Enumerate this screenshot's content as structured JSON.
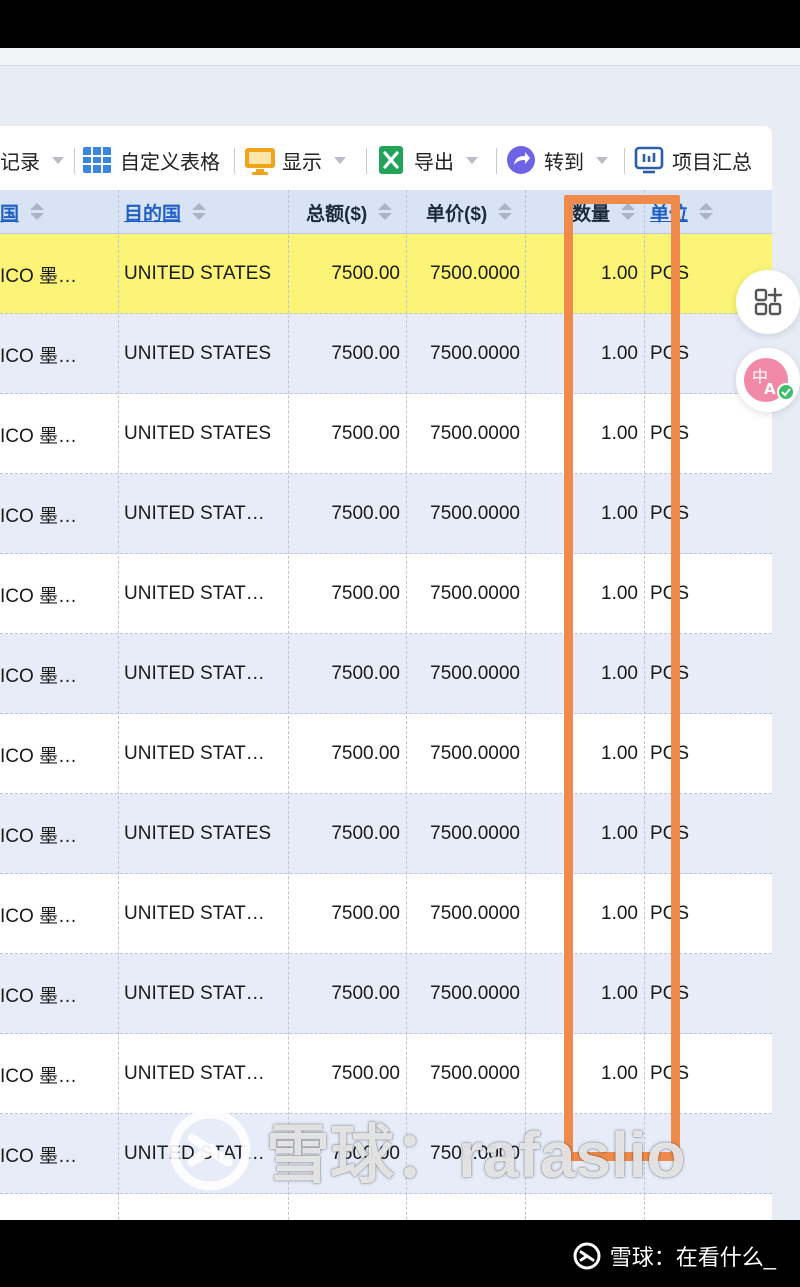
{
  "toolbar": {
    "records_label": "记录",
    "custom_table_label": "自定义表格",
    "display_label": "显示",
    "export_label": "导出",
    "goto_label": "转到",
    "summary_label": "项目汇总"
  },
  "columns": {
    "origin": "国",
    "destination": "目的国",
    "total": "总额($)",
    "unit_price": "单价($)",
    "quantity": "数量",
    "unit": "单位"
  },
  "rows": [
    {
      "origin": "ICO 墨…",
      "destination": "UNITED STATES",
      "total": "7500.00",
      "unit_price": "7500.0000",
      "quantity": "1.00",
      "unit": "PCS"
    },
    {
      "origin": "ICO 墨…",
      "destination": "UNITED STATES",
      "total": "7500.00",
      "unit_price": "7500.0000",
      "quantity": "1.00",
      "unit": "PCS"
    },
    {
      "origin": "ICO 墨…",
      "destination": "UNITED STATES",
      "total": "7500.00",
      "unit_price": "7500.0000",
      "quantity": "1.00",
      "unit": "PCS"
    },
    {
      "origin": "ICO 墨…",
      "destination": "UNITED STAT…",
      "total": "7500.00",
      "unit_price": "7500.0000",
      "quantity": "1.00",
      "unit": "PCS"
    },
    {
      "origin": "ICO 墨…",
      "destination": "UNITED STAT…",
      "total": "7500.00",
      "unit_price": "7500.0000",
      "quantity": "1.00",
      "unit": "PCS"
    },
    {
      "origin": "ICO 墨…",
      "destination": "UNITED STAT…",
      "total": "7500.00",
      "unit_price": "7500.0000",
      "quantity": "1.00",
      "unit": "PCS"
    },
    {
      "origin": "ICO 墨…",
      "destination": "UNITED STAT…",
      "total": "7500.00",
      "unit_price": "7500.0000",
      "quantity": "1.00",
      "unit": "PCS"
    },
    {
      "origin": "ICO 墨…",
      "destination": "UNITED STATES",
      "total": "7500.00",
      "unit_price": "7500.0000",
      "quantity": "1.00",
      "unit": "PCS"
    },
    {
      "origin": "ICO 墨…",
      "destination": "UNITED STAT…",
      "total": "7500.00",
      "unit_price": "7500.0000",
      "quantity": "1.00",
      "unit": "PCS"
    },
    {
      "origin": "ICO 墨…",
      "destination": "UNITED STAT…",
      "total": "7500.00",
      "unit_price": "7500.0000",
      "quantity": "1.00",
      "unit": "PCS"
    },
    {
      "origin": "ICO 墨…",
      "destination": "UNITED STAT…",
      "total": "7500.00",
      "unit_price": "7500.0000",
      "quantity": "1.00",
      "unit": "PCS"
    },
    {
      "origin": "ICO 墨…",
      "destination": "UNITED STAT…",
      "total": "7500.00",
      "unit_price": "7500.0000",
      "quantity": "",
      "unit": ""
    }
  ],
  "selected_row_index": 0,
  "watermark": {
    "text": "雪球：rafaslio",
    "footer": "雪球：在看什么_"
  },
  "colors": {
    "highlight": "#f08a4b",
    "selected_row": "#fbf477",
    "header_bg": "#d8e4f6",
    "link": "#1f5fc4"
  }
}
